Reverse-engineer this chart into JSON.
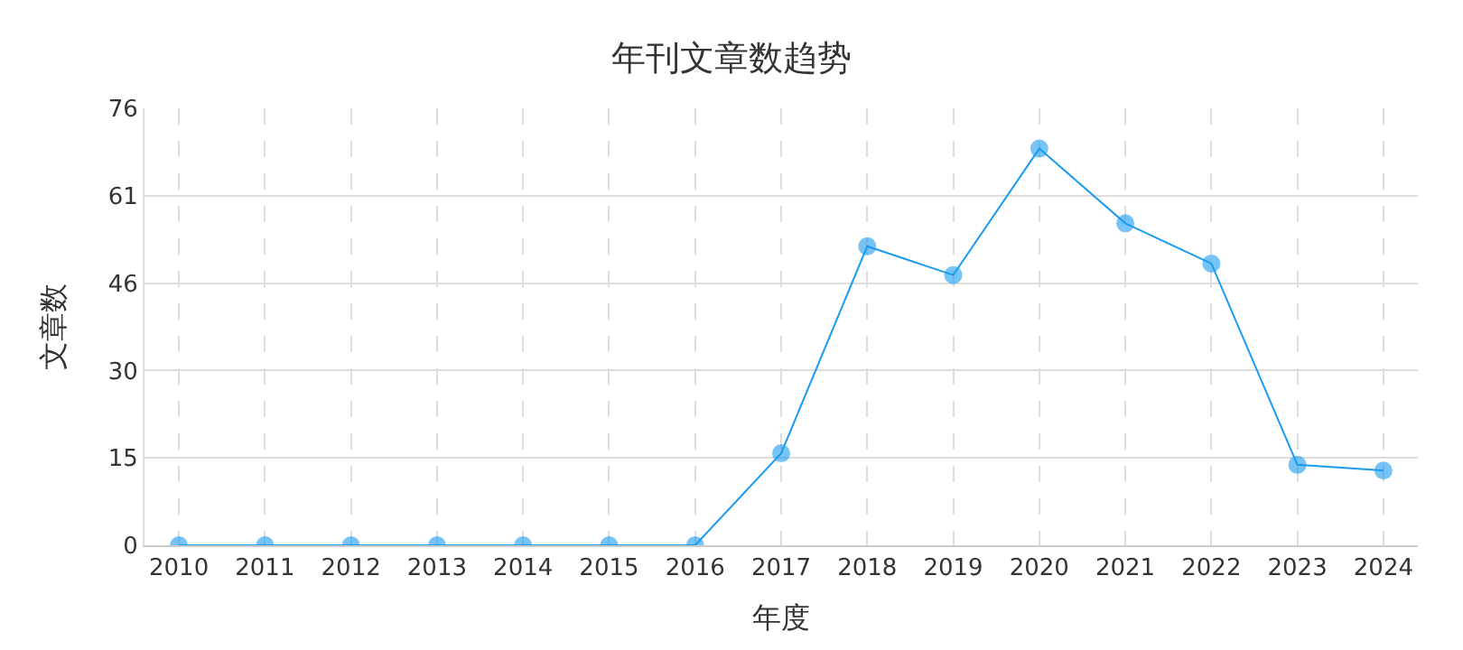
{
  "chart_data": {
    "type": "line",
    "title": "年刊文章数趋势",
    "xlabel": "年度",
    "ylabel": "文章数",
    "categories": [
      "2010",
      "2011",
      "2012",
      "2013",
      "2014",
      "2015",
      "2016",
      "2017",
      "2018",
      "2019",
      "2020",
      "2021",
      "2022",
      "2023",
      "2024"
    ],
    "series": [
      {
        "color": "#1a9bf0",
        "values": [
          0,
          0,
          0,
          0,
          0,
          0,
          0,
          16,
          52,
          47,
          69,
          56,
          49,
          14,
          13
        ]
      }
    ],
    "ylim": [
      0,
      76
    ],
    "yticks": [
      0,
      {
        "value": 15.2,
        "label": "15"
      },
      {
        "value": 30.4,
        "label": "30"
      },
      {
        "value": 45.6,
        "label": "46"
      },
      {
        "value": 60.8,
        "label": "61"
      },
      76
    ],
    "grid": true,
    "marker": "circle",
    "line_style": "solid"
  }
}
